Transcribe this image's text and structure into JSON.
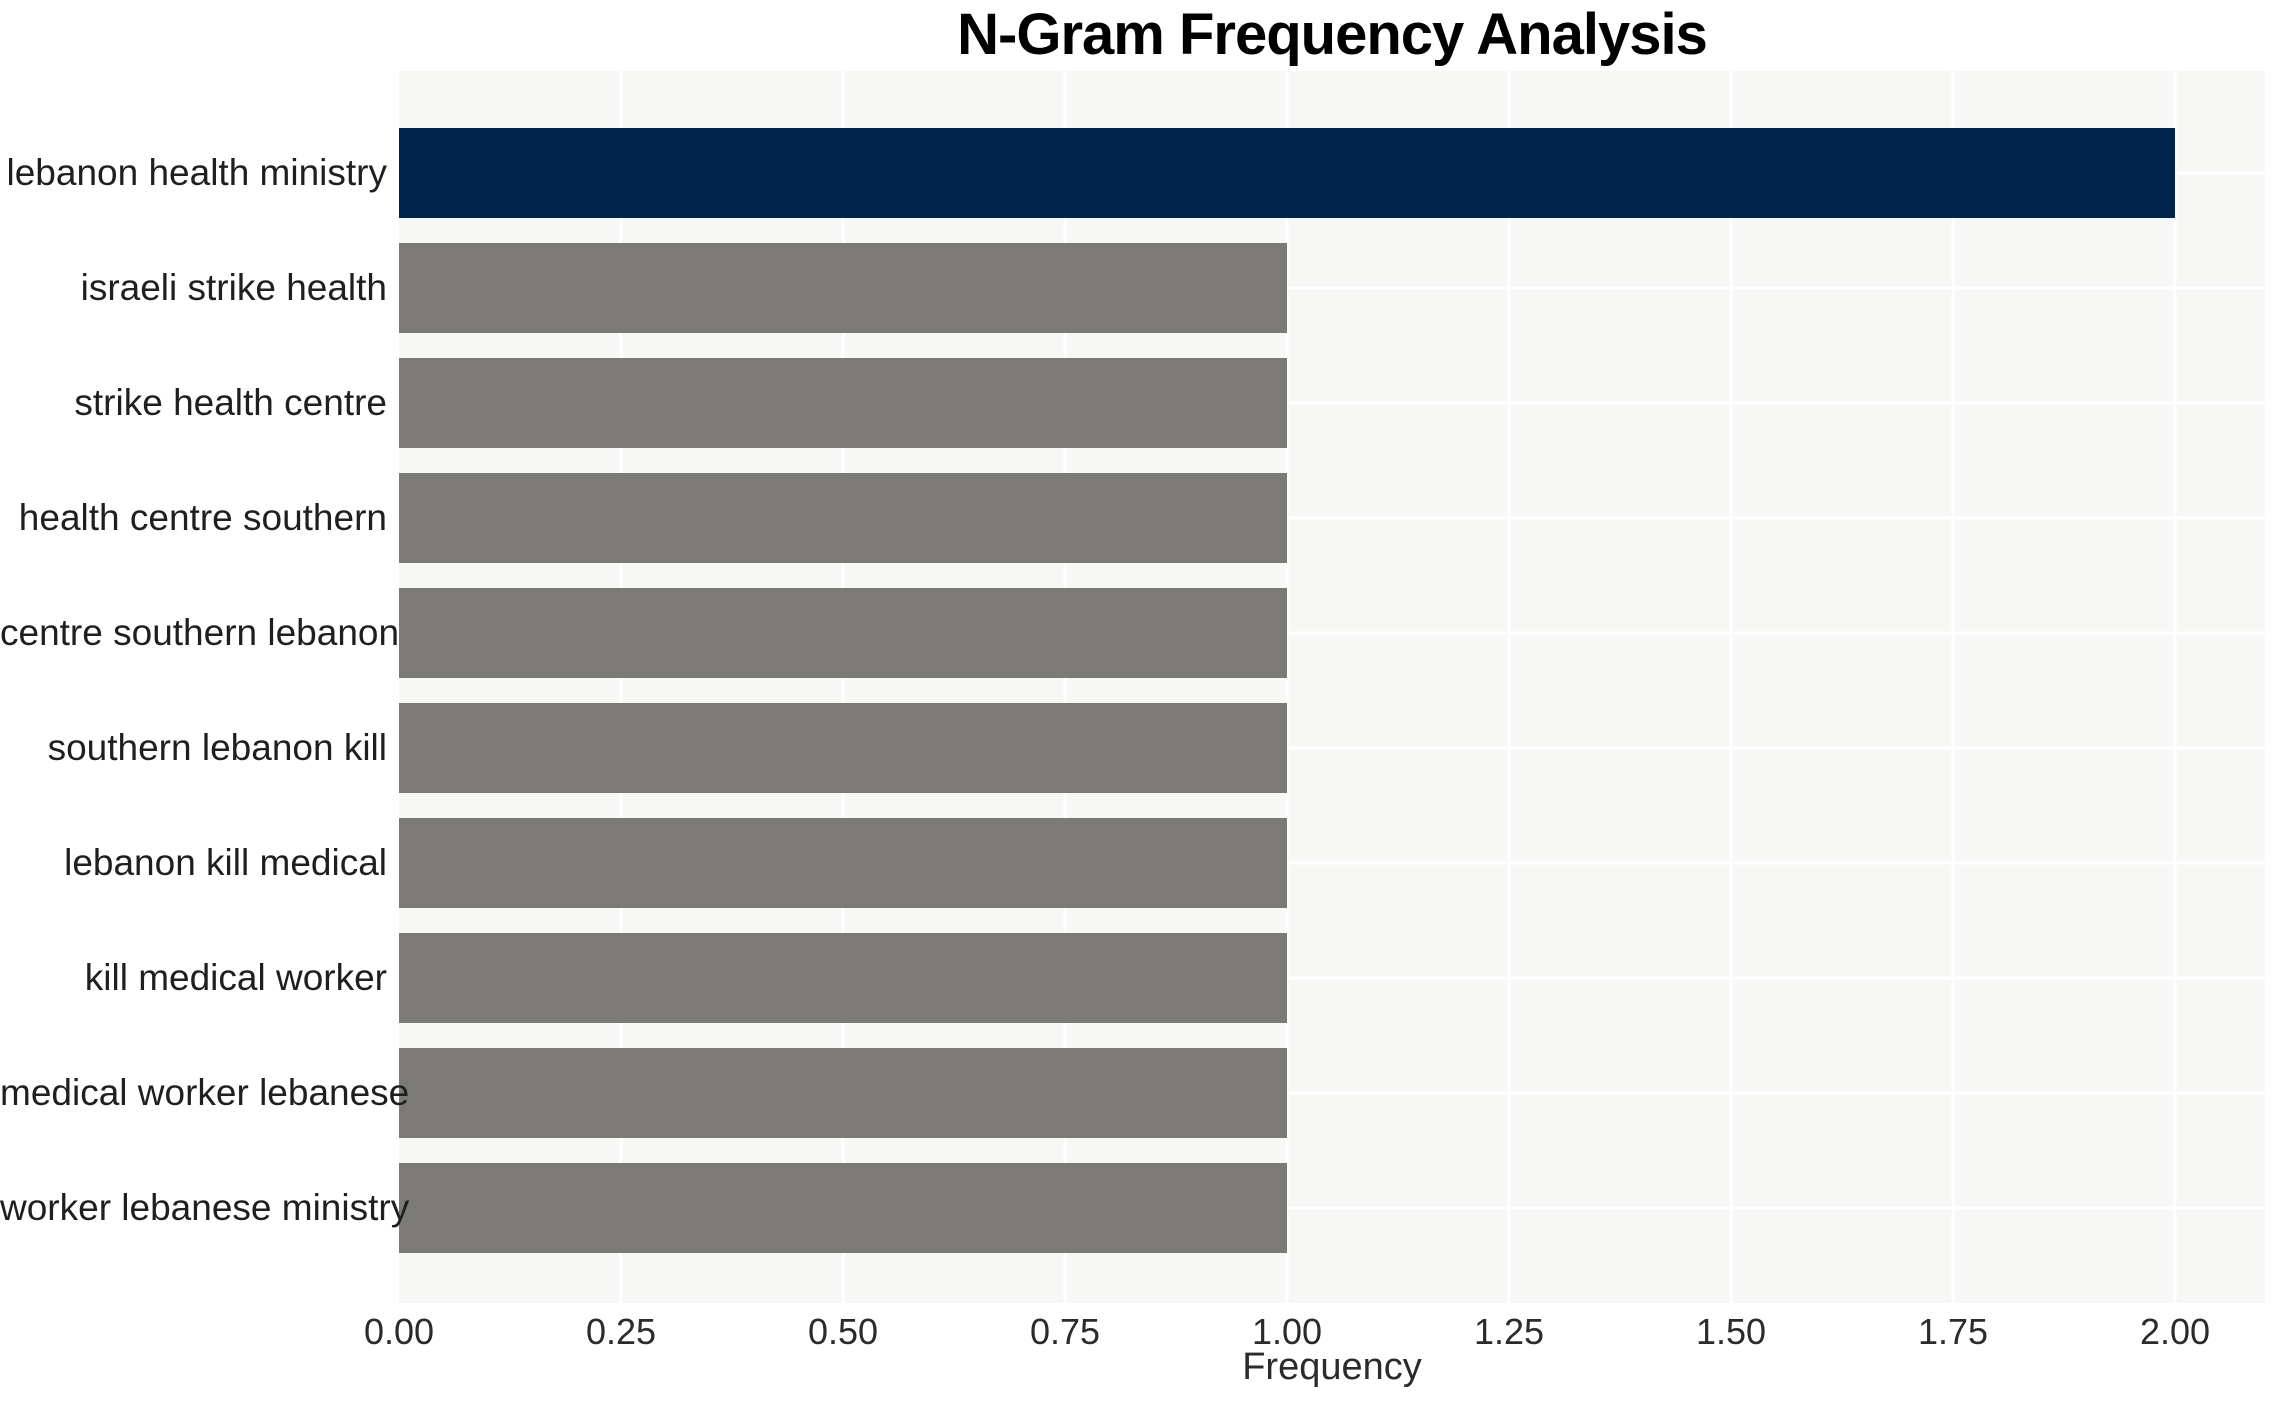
{
  "chart_data": {
    "type": "bar",
    "orientation": "horizontal",
    "title": "N-Gram Frequency Analysis",
    "xlabel": "Frequency",
    "ylabel": "",
    "categories": [
      "lebanon health ministry",
      "israeli strike health",
      "strike health centre",
      "health centre southern",
      "centre southern lebanon",
      "southern lebanon kill",
      "lebanon kill medical",
      "kill medical worker",
      "medical worker lebanese",
      "worker lebanese ministry"
    ],
    "values": [
      2,
      1,
      1,
      1,
      1,
      1,
      1,
      1,
      1,
      1
    ],
    "highlight_index": 0,
    "xlim": [
      0.0,
      2.1
    ],
    "xticks": [
      0.0,
      0.25,
      0.5,
      0.75,
      1.0,
      1.25,
      1.5,
      1.75,
      2.0
    ],
    "xtick_labels": [
      "0.00",
      "0.25",
      "0.50",
      "0.75",
      "1.00",
      "1.25",
      "1.50",
      "1.75",
      "2.00"
    ],
    "grid": true,
    "legend": false,
    "colors": {
      "bar_highlight": "#02234d",
      "bar_default": "#7c7a76",
      "plot_background": "#f7f7f6",
      "gridline": "#ffffff",
      "title_text": "#000000",
      "tick_text": "#2b2b2b"
    }
  }
}
